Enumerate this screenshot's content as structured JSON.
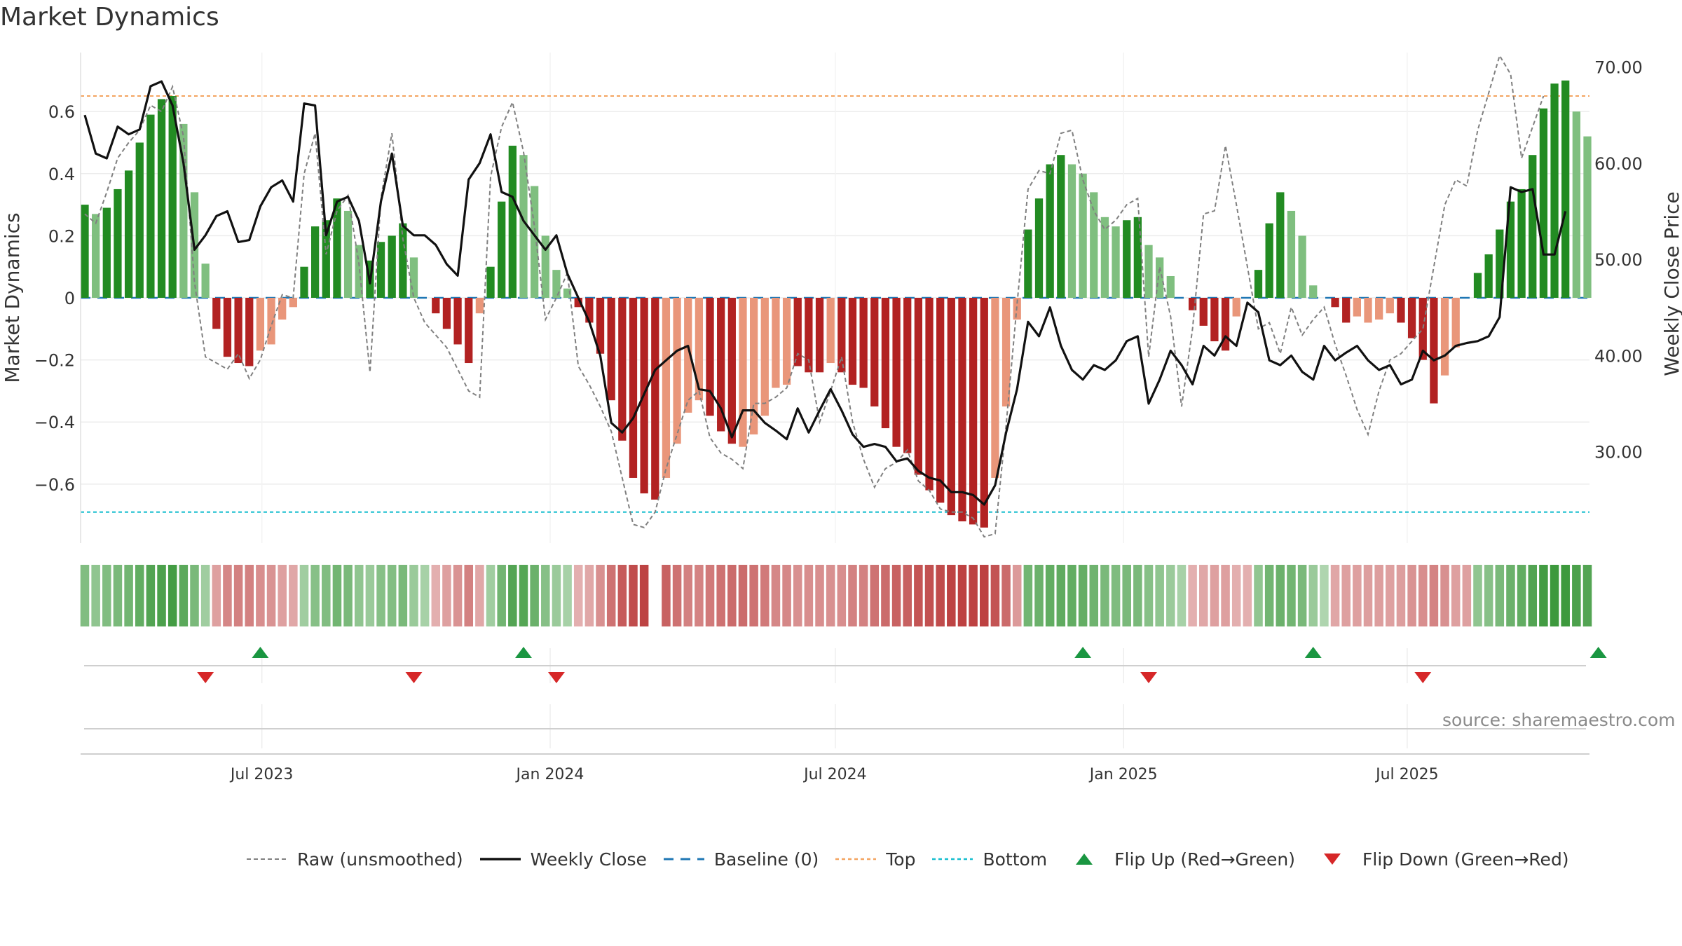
{
  "title": "Market Dynamics",
  "source_text": "source: sharemaestro.com",
  "colors": {
    "up_strong": "#228b22",
    "up_weak": "#7fbf7f",
    "down_strong": "#b22222",
    "down_weak": "#e9967a",
    "close_line": "#111111",
    "raw_line": "#808080",
    "baseline": "#1f77b4",
    "top_line": "#f4a460",
    "bottom_line": "#17becf",
    "flip_up": "#1a9641",
    "flip_down": "#d62728"
  },
  "legend": [
    {
      "key": "raw",
      "label": "Raw (unsmoothed)",
      "icon": "dashed-gray-line-icon"
    },
    {
      "key": "close",
      "label": "Weekly Close",
      "icon": "solid-black-line-icon"
    },
    {
      "key": "baseline",
      "label": "Baseline (0)",
      "icon": "dashed-blue-line-icon"
    },
    {
      "key": "top",
      "label": "Top",
      "icon": "dotted-orange-line-icon"
    },
    {
      "key": "bottom",
      "label": "Bottom",
      "icon": "dotted-cyan-line-icon"
    },
    {
      "key": "flip_up",
      "label": "Flip Up (Red→Green)",
      "icon": "green-triangle-up-icon"
    },
    {
      "key": "flip_down",
      "label": "Flip Down (Green→Red)",
      "icon": "red-triangle-down-icon"
    }
  ],
  "chart_data": {
    "type": "bar",
    "ylabel": "Market Dynamics",
    "y2label": "Weekly Close Price",
    "ylim": [
      -0.79,
      0.79
    ],
    "y2lim": [
      20.5,
      71.5
    ],
    "yticks": [
      -0.6,
      -0.4,
      -0.2,
      0,
      0.2,
      0.4,
      0.6
    ],
    "ytick_labels": [
      "−0.6",
      "−0.4",
      "−0.2",
      "0",
      "0.2",
      "0.4",
      "0.6"
    ],
    "y2ticks": [
      30,
      40,
      50,
      60,
      70
    ],
    "y2tick_labels": [
      "30.00",
      "40.00",
      "50.00",
      "60.00",
      "70.00"
    ],
    "x_start": "2023-03-10",
    "x_step_days": 7,
    "xticks": [
      {
        "date": "2023-07-01",
        "label": "Jul 2023"
      },
      {
        "date": "2024-01-01",
        "label": "Jan 2024"
      },
      {
        "date": "2024-07-01",
        "label": "Jul 2024"
      },
      {
        "date": "2025-01-01",
        "label": "Jan 2025"
      },
      {
        "date": "2025-07-01",
        "label": "Jul 2025"
      }
    ],
    "reference_lines": {
      "baseline": 0,
      "top": 0.65,
      "bottom": -0.69
    },
    "grid": true,
    "legend_position": "bottom",
    "dynamics": [
      0.3,
      0.27,
      0.29,
      0.35,
      0.41,
      0.5,
      0.59,
      0.64,
      0.65,
      0.56,
      0.34,
      0.11,
      -0.1,
      -0.19,
      -0.21,
      -0.22,
      -0.17,
      -0.15,
      -0.07,
      -0.03,
      0.1,
      0.23,
      0.25,
      0.32,
      0.28,
      0.17,
      0.12,
      0.18,
      0.2,
      0.24,
      0.13,
      0.0,
      -0.05,
      -0.1,
      -0.15,
      -0.21,
      -0.05,
      0.1,
      0.31,
      0.49,
      0.46,
      0.36,
      0.2,
      0.09,
      0.03,
      -0.03,
      -0.08,
      -0.18,
      -0.33,
      -0.46,
      -0.58,
      -0.63,
      -0.65,
      -0.58,
      -0.47,
      -0.37,
      -0.33,
      -0.38,
      -0.43,
      -0.47,
      -0.48,
      -0.44,
      -0.38,
      -0.29,
      -0.28,
      -0.22,
      -0.24,
      -0.24,
      -0.21,
      -0.24,
      -0.28,
      -0.29,
      -0.35,
      -0.42,
      -0.48,
      -0.5,
      -0.57,
      -0.62,
      -0.66,
      -0.7,
      -0.72,
      -0.73,
      -0.74,
      -0.58,
      -0.35,
      -0.07,
      0.22,
      0.32,
      0.43,
      0.46,
      0.43,
      0.4,
      0.34,
      0.26,
      0.23,
      0.25,
      0.26,
      0.17,
      0.13,
      0.07,
      0.0,
      -0.04,
      -0.09,
      -0.14,
      -0.17,
      -0.06,
      0.0,
      0.09,
      0.24,
      0.34,
      0.28,
      0.2,
      0.04,
      0.0,
      -0.03,
      -0.08,
      -0.06,
      -0.08,
      -0.07,
      -0.05,
      -0.08,
      -0.13,
      -0.2,
      -0.34,
      -0.25,
      -0.16,
      0.0,
      0.08,
      0.14,
      0.22,
      0.31,
      0.35,
      0.46,
      0.61,
      0.69,
      0.7,
      0.6,
      0.52
    ],
    "dynamics_strength": [
      "strong",
      "weak",
      "strong",
      "strong",
      "strong",
      "strong",
      "strong",
      "strong",
      "strong",
      "weak",
      "weak",
      "weak",
      "strong",
      "strong",
      "strong",
      "strong",
      "weak",
      "weak",
      "weak",
      "weak",
      "strong",
      "strong",
      "strong",
      "strong",
      "weak",
      "weak",
      "strong",
      "strong",
      "strong",
      "strong",
      "weak",
      "weak",
      "strong",
      "strong",
      "strong",
      "strong",
      "weak",
      "strong",
      "strong",
      "strong",
      "weak",
      "weak",
      "weak",
      "weak",
      "weak",
      "strong",
      "strong",
      "strong",
      "strong",
      "strong",
      "strong",
      "strong",
      "strong",
      "weak",
      "weak",
      "weak",
      "weak",
      "strong",
      "strong",
      "strong",
      "weak",
      "weak",
      "weak",
      "weak",
      "weak",
      "strong",
      "strong",
      "strong",
      "weak",
      "strong",
      "strong",
      "strong",
      "strong",
      "strong",
      "strong",
      "strong",
      "strong",
      "strong",
      "strong",
      "strong",
      "strong",
      "strong",
      "strong",
      "weak",
      "weak",
      "weak",
      "strong",
      "strong",
      "strong",
      "strong",
      "weak",
      "weak",
      "weak",
      "weak",
      "weak",
      "strong",
      "strong",
      "weak",
      "weak",
      "weak",
      "weak",
      "strong",
      "strong",
      "strong",
      "strong",
      "weak",
      "weak",
      "strong",
      "strong",
      "strong",
      "weak",
      "weak",
      "weak",
      "weak",
      "strong",
      "strong",
      "weak",
      "weak",
      "weak",
      "weak",
      "strong",
      "strong",
      "strong",
      "strong",
      "weak",
      "weak",
      "weak",
      "strong",
      "strong",
      "strong",
      "strong",
      "strong",
      "strong",
      "strong",
      "strong",
      "strong",
      "weak",
      "weak"
    ],
    "raw": [
      0.27,
      0.24,
      0.34,
      0.45,
      0.5,
      0.54,
      0.62,
      0.6,
      0.68,
      0.52,
      0.05,
      -0.19,
      -0.21,
      -0.23,
      -0.18,
      -0.26,
      -0.2,
      -0.09,
      0.01,
      0.0,
      0.4,
      0.53,
      0.14,
      0.28,
      0.33,
      0.11,
      -0.24,
      0.32,
      0.53,
      0.19,
      0.0,
      -0.08,
      -0.12,
      -0.16,
      -0.23,
      -0.3,
      -0.32,
      0.39,
      0.55,
      0.63,
      0.47,
      0.23,
      -0.07,
      0.0,
      0.08,
      -0.22,
      -0.28,
      -0.35,
      -0.43,
      -0.58,
      -0.73,
      -0.74,
      -0.69,
      -0.55,
      -0.44,
      -0.33,
      -0.3,
      -0.45,
      -0.5,
      -0.52,
      -0.55,
      -0.34,
      -0.34,
      -0.32,
      -0.29,
      -0.18,
      -0.2,
      -0.4,
      -0.3,
      -0.19,
      -0.4,
      -0.52,
      -0.61,
      -0.55,
      -0.53,
      -0.49,
      -0.59,
      -0.62,
      -0.68,
      -0.69,
      -0.69,
      -0.71,
      -0.77,
      -0.76,
      -0.41,
      -0.02,
      0.35,
      0.41,
      0.4,
      0.53,
      0.54,
      0.38,
      0.28,
      0.22,
      0.25,
      0.3,
      0.32,
      -0.19,
      0.1,
      -0.06,
      -0.35,
      -0.1,
      0.27,
      0.28,
      0.49,
      0.3,
      0.1,
      -0.1,
      -0.08,
      -0.18,
      -0.03,
      -0.12,
      -0.07,
      -0.03,
      -0.15,
      -0.25,
      -0.36,
      -0.44,
      -0.3,
      -0.2,
      -0.18,
      -0.14,
      -0.1,
      0.1,
      0.3,
      0.38,
      0.36,
      0.54,
      0.66,
      0.78,
      0.72,
      0.45,
      0.55,
      0.65
    ],
    "weekly_close": [
      65.0,
      61.0,
      60.5,
      63.8,
      63.0,
      63.5,
      68.0,
      68.5,
      66.0,
      60.0,
      51.0,
      52.5,
      54.5,
      55.0,
      51.8,
      52.0,
      55.5,
      57.5,
      58.2,
      56.0,
      66.2,
      66.0,
      52.5,
      56.0,
      56.5,
      54.0,
      47.5,
      56.0,
      61.0,
      53.5,
      52.5,
      52.5,
      51.5,
      49.5,
      48.3,
      58.3,
      60.0,
      63.0,
      57.0,
      56.5,
      54.0,
      52.5,
      51.0,
      52.5,
      48.5,
      46.0,
      43.5,
      40.0,
      33.0,
      32.0,
      33.5,
      36.0,
      38.5,
      39.5,
      40.5,
      41.0,
      36.5,
      36.3,
      34.5,
      31.5,
      34.3,
      34.3,
      33.0,
      32.2,
      31.3,
      34.5,
      32.0,
      34.3,
      36.5,
      34.3,
      31.8,
      30.5,
      30.8,
      30.5,
      29.0,
      29.3,
      28.0,
      27.3,
      27.0,
      25.8,
      25.8,
      25.5,
      24.5,
      26.5,
      32.0,
      36.5,
      43.5,
      42.0,
      45.0,
      41.0,
      38.5,
      37.5,
      39.0,
      38.5,
      39.5,
      41.5,
      42.0,
      35.0,
      37.5,
      40.5,
      39.0,
      37.0,
      41.0,
      40.0,
      42.0,
      41.0,
      45.5,
      44.5,
      39.5,
      39.0,
      40.0,
      38.3,
      37.5,
      41.0,
      39.5,
      40.3,
      41.0,
      39.5,
      38.5,
      39.0,
      37.0,
      37.5,
      40.5,
      39.5,
      40.0,
      41.0,
      41.3,
      41.5,
      42.0,
      44.0,
      57.5,
      57.0,
      57.3,
      50.5,
      50.5,
      55.0
    ],
    "regime_strip": [
      0.5,
      0.4,
      0.5,
      0.55,
      0.6,
      0.7,
      0.8,
      0.85,
      0.9,
      0.75,
      0.55,
      0.3,
      0.3,
      0.45,
      0.5,
      0.5,
      0.42,
      0.38,
      0.3,
      0.25,
      0.3,
      0.45,
      0.5,
      0.6,
      0.55,
      0.4,
      0.35,
      0.45,
      0.48,
      0.55,
      0.35,
      0.25,
      0.2,
      0.3,
      0.38,
      0.5,
      0.25,
      0.3,
      0.6,
      0.8,
      0.78,
      0.65,
      0.45,
      0.35,
      0.25,
      0.2,
      0.25,
      0.4,
      0.6,
      0.75,
      0.85,
      0.9,
      null,
      0.7,
      0.6,
      0.5,
      0.48,
      0.55,
      0.6,
      0.65,
      0.65,
      0.6,
      0.55,
      0.45,
      0.45,
      0.4,
      0.42,
      0.42,
      0.4,
      0.42,
      0.5,
      0.5,
      0.58,
      0.65,
      0.7,
      0.72,
      0.78,
      0.82,
      0.85,
      0.9,
      0.92,
      0.92,
      0.92,
      0.8,
      0.65,
      0.35,
      0.6,
      0.65,
      0.7,
      0.72,
      0.7,
      0.68,
      0.62,
      0.55,
      0.52,
      0.55,
      0.55,
      0.45,
      0.4,
      0.35,
      0.25,
      0.2,
      0.25,
      0.3,
      0.3,
      0.2,
      0.2,
      0.4,
      0.6,
      0.65,
      0.6,
      0.55,
      0.35,
      0.2,
      0.25,
      0.3,
      0.3,
      0.32,
      0.32,
      0.3,
      0.32,
      0.38,
      0.42,
      0.48,
      0.4,
      0.3,
      0.3,
      0.4,
      0.45,
      0.55,
      0.65,
      0.7,
      0.8,
      0.9,
      0.95,
      0.95,
      0.85,
      0.8
    ],
    "flip_up_index": [
      16,
      40,
      91,
      112,
      138
    ],
    "flip_down_index": [
      11,
      30,
      43,
      97,
      122
    ]
  }
}
